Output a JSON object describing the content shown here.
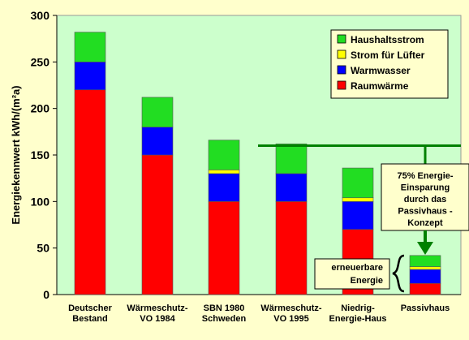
{
  "chart_data": {
    "type": "bar",
    "stacked": true,
    "ylabel": "Energiekennwert  kWh/(m²a)",
    "ylim": [
      0,
      300
    ],
    "yticks": [
      "0",
      "50",
      "100",
      "150",
      "200",
      "250",
      "300"
    ],
    "grid": false,
    "legend_position": "top-right",
    "categories": [
      [
        "Deutscher",
        "Bestand"
      ],
      [
        "Wärmeschutz-",
        "VO 1984"
      ],
      [
        "SBN 1980",
        "Schweden"
      ],
      [
        "Wärmeschutz-",
        "VO 1995"
      ],
      [
        "Niedrig-",
        "Energie-Haus"
      ],
      [
        "Passivhaus"
      ]
    ],
    "series": [
      {
        "name": "Raumwärme",
        "color": "#ff0000",
        "values": [
          220,
          150,
          100,
          100,
          70,
          12
        ]
      },
      {
        "name": "Warmwasser",
        "color": "#0000ff",
        "values": [
          30,
          30,
          30,
          30,
          30,
          15
        ]
      },
      {
        "name": "Strom für Lüfter",
        "color": "#ffff00",
        "values": [
          0,
          0,
          4,
          0,
          4,
          3
        ]
      },
      {
        "name": "Haushaltsstrom",
        "color": "#22dd22",
        "values": [
          32,
          32,
          32,
          32,
          32,
          12
        ]
      }
    ],
    "legend_order": [
      "Haushaltsstrom",
      "Strom für Lüfter",
      "Warmwasser",
      "Raumwärme"
    ],
    "reference_line": {
      "value": 160,
      "color": "#008000"
    },
    "annotations": {
      "savings": [
        "75% Energie-",
        "Einsparung",
        "durch das",
        "Passivhaus -",
        "Konzept"
      ],
      "renewable": [
        "erneuerbare",
        "Energie"
      ]
    },
    "colors": {
      "background": "#ffffcc",
      "plot_background": "#ccffcc",
      "line_green": "#008000"
    }
  }
}
